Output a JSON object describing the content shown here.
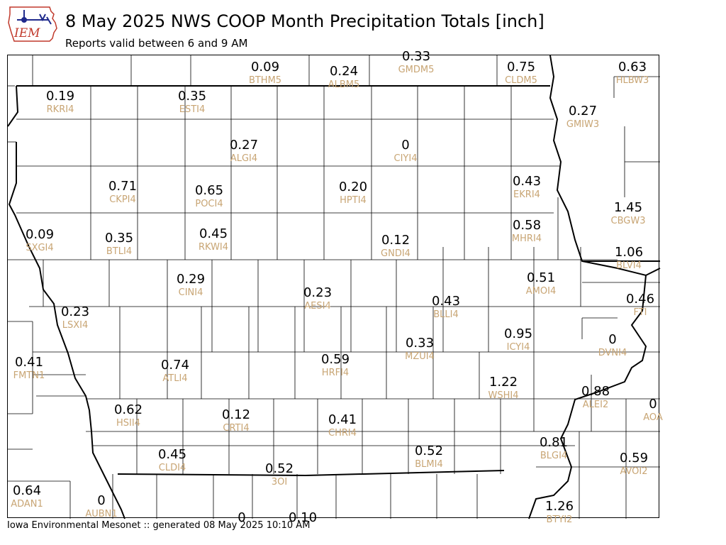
{
  "header": {
    "logo_text": "IEM",
    "title": "8 May 2025 NWS COOP Month Precipitation Totals [inch]",
    "subtitle": "Reports valid between 6 and 9 AM"
  },
  "footer": {
    "text": "Iowa Environmental Mesonet :: generated 08 May 2025 10:10 AM"
  },
  "colors": {
    "value_text": "#000000",
    "station_id_text": "#c8a574",
    "county_lines": "#000000"
  },
  "stations": [
    {
      "value": "0.09",
      "id": "BTHM5"
    },
    {
      "value": "0.24",
      "id": "ALBM5"
    },
    {
      "value": "0.33",
      "id": "GMDM5"
    },
    {
      "value": "0.75",
      "id": "CLDM5"
    },
    {
      "value": "0.63",
      "id": "HLBW3"
    },
    {
      "value": "0.19",
      "id": "RKRI4"
    },
    {
      "value": "0.35",
      "id": "ESTI4"
    },
    {
      "value": "0.27",
      "id": "GMIW3"
    },
    {
      "value": "0.27",
      "id": "ALGI4"
    },
    {
      "value": "0",
      "id": "CIYI4"
    },
    {
      "value": "0.71",
      "id": "CKPI4"
    },
    {
      "value": "0.65",
      "id": "POCI4"
    },
    {
      "value": "0.20",
      "id": "HPTI4"
    },
    {
      "value": "0.43",
      "id": "EKRI4"
    },
    {
      "value": "1.45",
      "id": "CBGW3"
    },
    {
      "value": "0.09",
      "id": "SXGI4"
    },
    {
      "value": "0.35",
      "id": "BTLI4"
    },
    {
      "value": "0.45",
      "id": "RKWI4"
    },
    {
      "value": "0.12",
      "id": "GNDI4"
    },
    {
      "value": "0.58",
      "id": "MHRI4"
    },
    {
      "value": "1.06",
      "id": "BLVI4"
    },
    {
      "value": "0.29",
      "id": "CINI4"
    },
    {
      "value": "0.23",
      "id": "AESI4"
    },
    {
      "value": "0.51",
      "id": "AMOI4"
    },
    {
      "value": "0.46",
      "id": "FTI"
    },
    {
      "value": "0.23",
      "id": "LSXI4"
    },
    {
      "value": "0.43",
      "id": "BLLI4"
    },
    {
      "value": "0.95",
      "id": "ICYI4"
    },
    {
      "value": "0",
      "id": "DVNI4"
    },
    {
      "value": "0.41",
      "id": "FMTN1"
    },
    {
      "value": "0.74",
      "id": "ATLI4"
    },
    {
      "value": "0.59",
      "id": "HRFI4"
    },
    {
      "value": "0.33",
      "id": "MZUI4"
    },
    {
      "value": "1.22",
      "id": "WSHI4"
    },
    {
      "value": "0.88",
      "id": "ALEI2"
    },
    {
      "value": "0",
      "id": "AOA"
    },
    {
      "value": "0.62",
      "id": "HSII4"
    },
    {
      "value": "0.12",
      "id": "CRTI4"
    },
    {
      "value": "0.41",
      "id": "CHRI4"
    },
    {
      "value": "0.45",
      "id": "CLDI4"
    },
    {
      "value": "0.52",
      "id": "3OI"
    },
    {
      "value": "0.52",
      "id": "BLMI4"
    },
    {
      "value": "0.81",
      "id": "BLGI4"
    },
    {
      "value": "0.59",
      "id": "AVOI2"
    },
    {
      "value": "0.64",
      "id": "ADAN1"
    },
    {
      "value": "0",
      "id": "AUBN1"
    },
    {
      "value": "1.26",
      "id": "BTYI2"
    },
    {
      "value": "0",
      "id": ""
    },
    {
      "value": "0.10",
      "id": ""
    }
  ]
}
